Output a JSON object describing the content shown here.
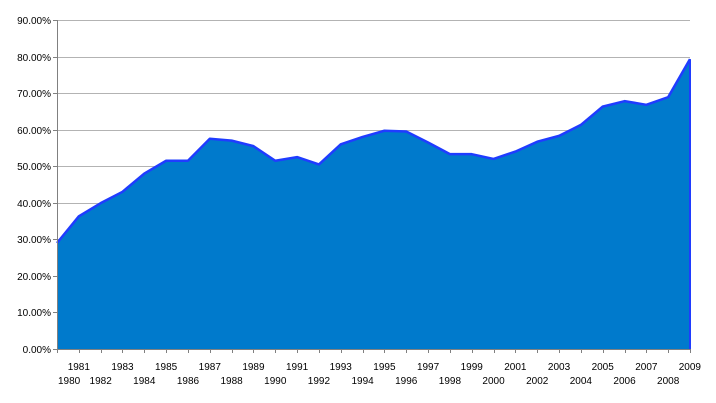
{
  "chart_data": {
    "type": "area",
    "title": "",
    "xlabel": "",
    "ylabel": "",
    "grid": true,
    "legend": "none",
    "ylim": [
      0,
      90
    ],
    "y_ticks": [
      0,
      10,
      20,
      30,
      40,
      50,
      60,
      70,
      80,
      90
    ],
    "y_tick_labels": [
      "0.00%",
      "10.00%",
      "20.00%",
      "30.00%",
      "40.00%",
      "50.00%",
      "60.00%",
      "70.00%",
      "80.00%",
      "90.00%"
    ],
    "x": [
      "1980",
      "1981",
      "1982",
      "1983",
      "1984",
      "1985",
      "1986",
      "1987",
      "1988",
      "1989",
      "1990",
      "1991",
      "1992",
      "1993",
      "1994",
      "1995",
      "1996",
      "1997",
      "1998",
      "1999",
      "2000",
      "2001",
      "2002",
      "2003",
      "2004",
      "2005",
      "2006",
      "2007",
      "2008",
      "2009"
    ],
    "series": [
      {
        "values": [
          29.0,
          36.3,
          39.9,
          43.0,
          48.0,
          51.5,
          51.5,
          57.5,
          57.0,
          55.5,
          51.5,
          52.5,
          50.5,
          56.0,
          58.0,
          59.7,
          59.5,
          56.5,
          53.3,
          53.3,
          52.0,
          54.0,
          56.7,
          58.3,
          61.3,
          66.3,
          67.8,
          66.8,
          68.9,
          79.3
        ],
        "color": "#007acc",
        "line_color": "#1f3cff"
      }
    ],
    "colors": {
      "grid": "#b3b3b3",
      "axis": "#808080"
    }
  }
}
